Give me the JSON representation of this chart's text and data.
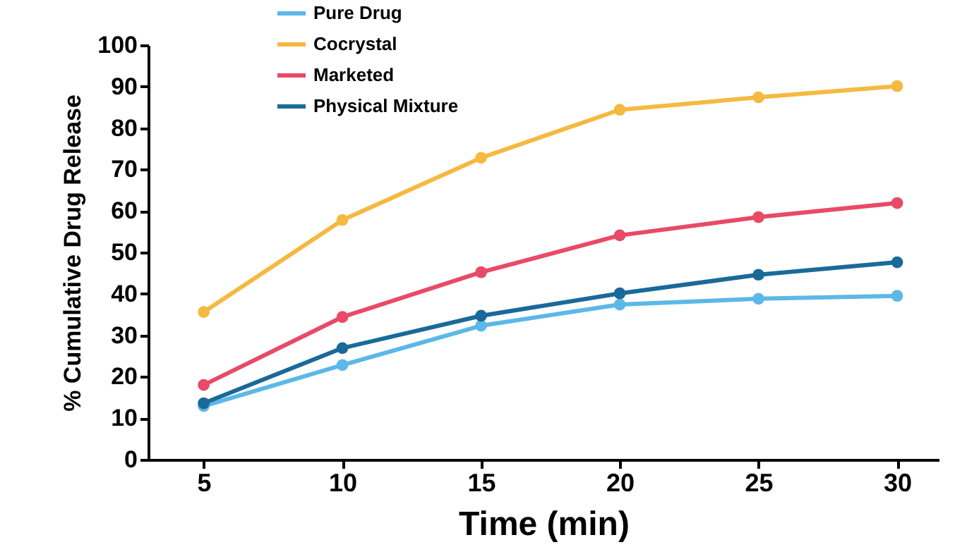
{
  "chart_data": {
    "type": "line",
    "xlabel": "Time (min)",
    "ylabel": "% Cumulative Drug Release",
    "x": [
      5,
      10,
      15,
      20,
      25,
      30
    ],
    "series": [
      {
        "name": "Pure Drug",
        "color": "#5bb8e8",
        "values": [
          12.9,
          22.8,
          32.3,
          37.4,
          38.8,
          39.5
        ]
      },
      {
        "name": "Cocrystal",
        "color": "#f5b942",
        "values": [
          35.6,
          57.8,
          72.8,
          84.4,
          87.4,
          90.1
        ]
      },
      {
        "name": "Marketed",
        "color": "#e84a67",
        "values": [
          18,
          34.4,
          45.2,
          54.1,
          58.5,
          61.9
        ]
      },
      {
        "name": "Physical Mixture",
        "color": "#1a6a99",
        "values": [
          13.6,
          26.9,
          34.7,
          40.1,
          44.6,
          47.6
        ]
      }
    ],
    "xlim": [
      3,
      31.5
    ],
    "xticks": [
      5,
      10,
      15,
      20,
      25,
      30
    ],
    "ylim": [
      0,
      100
    ],
    "yticks": [
      0,
      10,
      20,
      30,
      40,
      50,
      60,
      70,
      80,
      90,
      100
    ],
    "grid": false,
    "legend": "top left",
    "marker": "circle",
    "line_style": "solid"
  }
}
